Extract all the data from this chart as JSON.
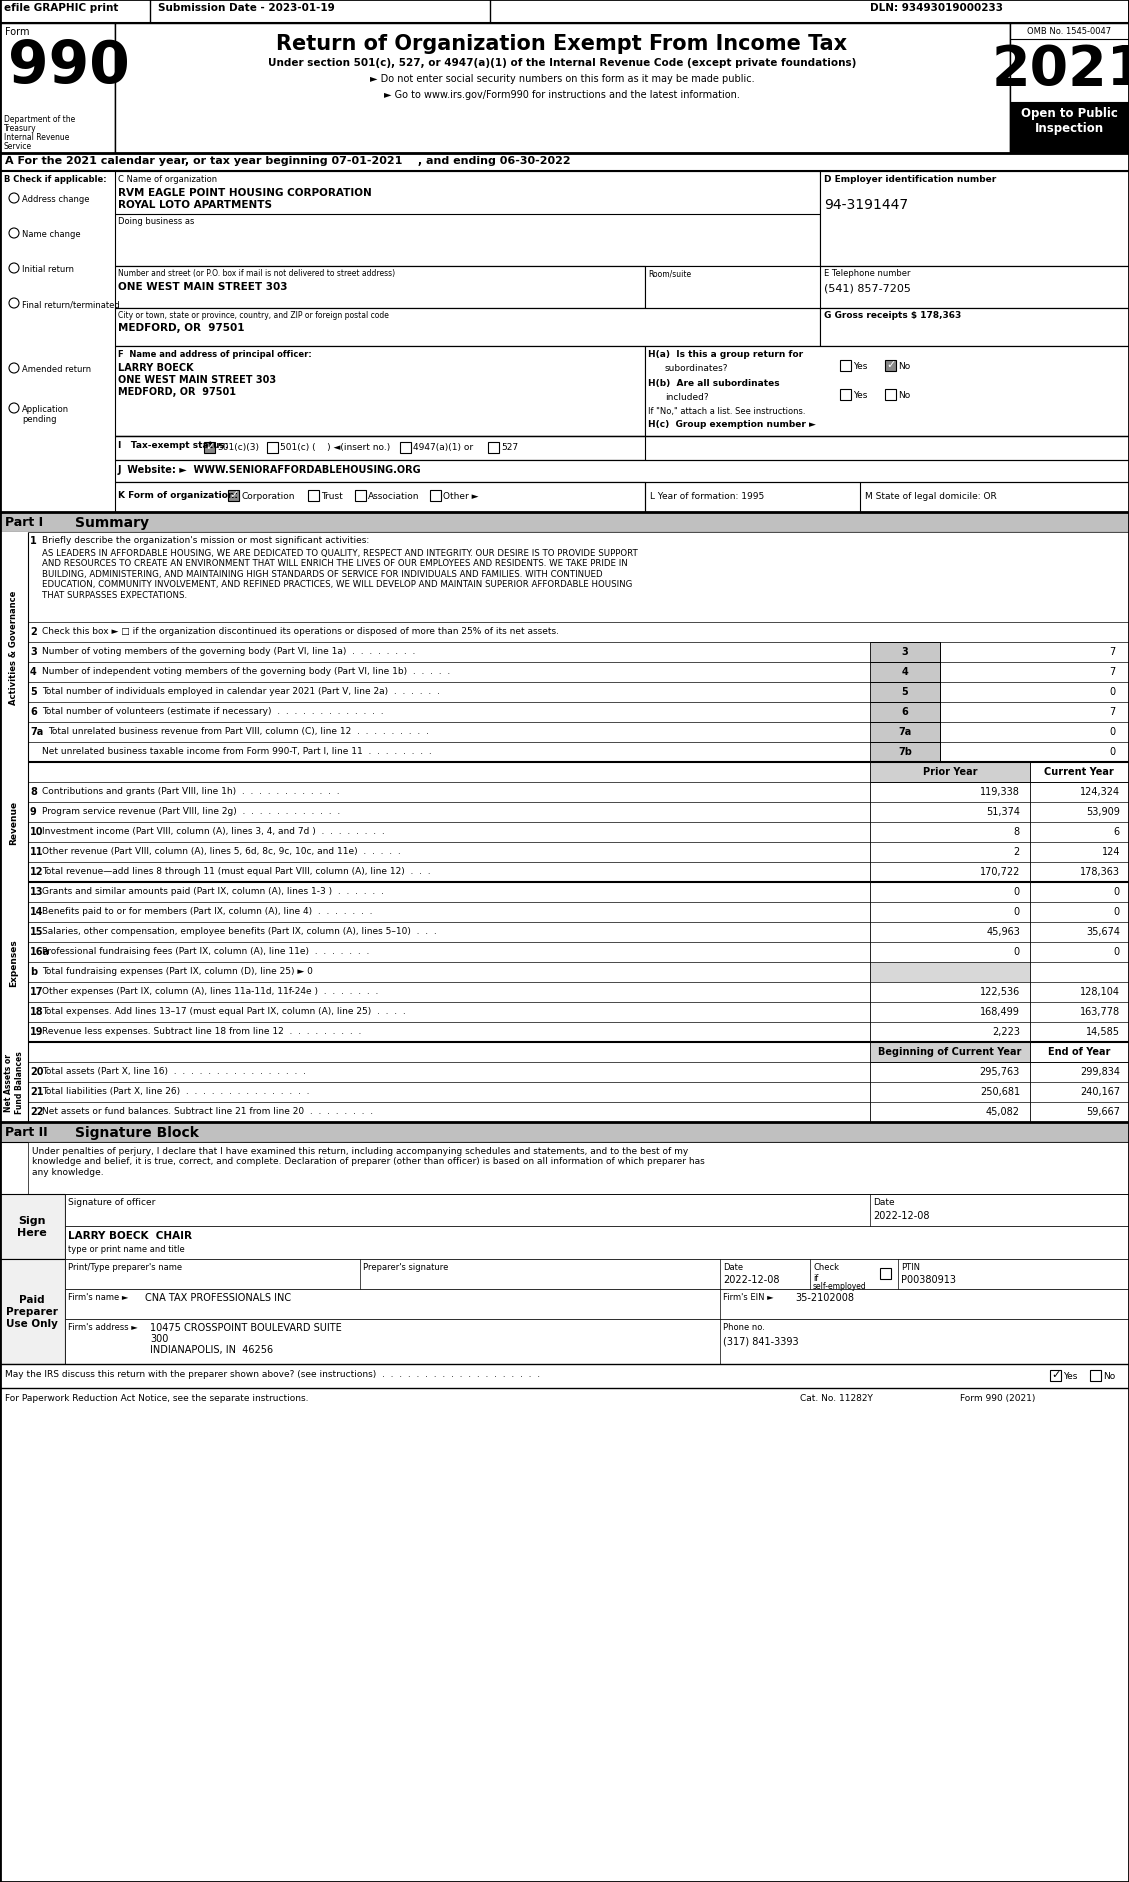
{
  "efile_text": "efile GRAPHIC print",
  "submission_date": "Submission Date - 2023-01-19",
  "dln": "DLN: 93493019000233",
  "form_number": "990",
  "title": "Return of Organization Exempt From Income Tax",
  "subtitle1": "Under section 501(c), 527, or 4947(a)(1) of the Internal Revenue Code (except private foundations)",
  "subtitle2": "► Do not enter social security numbers on this form as it may be made public.",
  "subtitle3": "► Go to www.irs.gov/Form990 for instructions and the latest information.",
  "year": "2021",
  "omb": "OMB No. 1545-0047",
  "open_to_public": "Open to Public\nInspection",
  "dept": "Department of the\nTreasury\nInternal Revenue\nService",
  "tax_year_line": "A For the 2021 calendar year, or tax year beginning 07-01-2021    , and ending 06-30-2022",
  "b_items": [
    "Address change",
    "Name change",
    "Initial return",
    "Final return/terminated",
    "Amended return",
    "Application\npending"
  ],
  "org_name1": "RVM EAGLE POINT HOUSING CORPORATION",
  "org_name2": "ROYAL LOTO APARTMENTS",
  "dba_label": "Doing business as",
  "street": "ONE WEST MAIN STREET 303",
  "city": "MEDFORD, OR  97501",
  "ein": "94-3191447",
  "phone": "(541) 857-7205",
  "gross_receipts": "178,363",
  "officer_name": "LARRY BOECK",
  "officer_street": "ONE WEST MAIN STREET 303",
  "officer_city": "MEDFORD, OR  97501",
  "website": "WWW.SENIORAFFORDABLEHOUSING.ORG",
  "mission": "AS LEADERS IN AFFORDABLE HOUSING, WE ARE DEDICATED TO QUALITY, RESPECT AND INTEGRITY. OUR DESIRE IS TO PROVIDE SUPPORT\nAND RESOURCES TO CREATE AN ENVIRONMENT THAT WILL ENRICH THE LIVES OF OUR EMPLOYEES AND RESIDENTS. WE TAKE PRIDE IN\nBUILDING, ADMINISTERING, AND MAINTAINING HIGH STANDARDS OF SERVICE FOR INDIVIDUALS AND FAMILIES. WITH CONTINUED\nEDUCATION, COMMUNITY INVOLVEMENT, AND REFINED PRACTICES, WE WILL DEVELOP AND MAINTAIN SUPERIOR AFFORDABLE HOUSING\nTHAT SURPASSES EXPECTATIONS.",
  "line2_text": "Check this box ► □ if the organization discontinued its operations or disposed of more than 25% of its net assets.",
  "line3_text": "Number of voting members of the governing body (Part VI, line 1a)  .  .  .  .  .  .  .  .",
  "line3_num": "7",
  "line4_text": "Number of independent voting members of the governing body (Part VI, line 1b)  .  .  .  .  .",
  "line4_num": "7",
  "line5_text": "Total number of individuals employed in calendar year 2021 (Part V, line 2a)  .  .  .  .  .  .",
  "line5_num": "0",
  "line6_text": "Total number of volunteers (estimate if necessary)  .  .  .  .  .  .  .  .  .  .  .  .  .",
  "line6_num": "7",
  "line7a_text": "Total unrelated business revenue from Part VIII, column (C), line 12  .  .  .  .  .  .  .  .  .",
  "line7a_num": "0",
  "line7b_text": "Net unrelated business taxable income from Form 990-T, Part I, line 11  .  .  .  .  .  .  .  .",
  "line7b_num": "0",
  "prior_year": "Prior Year",
  "current_year": "Current Year",
  "line8_text": "Contributions and grants (Part VIII, line 1h)  .  .  .  .  .  .  .  .  .  .  .  .",
  "line8_prior": "119,338",
  "line8_current": "124,324",
  "line9_text": "Program service revenue (Part VIII, line 2g)  .  .  .  .  .  .  .  .  .  .  .  .",
  "line9_prior": "51,374",
  "line9_current": "53,909",
  "line10_text": "Investment income (Part VIII, column (A), lines 3, 4, and 7d )  .  .  .  .  .  .  .  .",
  "line10_prior": "8",
  "line10_current": "6",
  "line11_text": "Other revenue (Part VIII, column (A), lines 5, 6d, 8c, 9c, 10c, and 11e)  .  .  .  .  .",
  "line11_prior": "2",
  "line11_current": "124",
  "line12_text": "Total revenue—add lines 8 through 11 (must equal Part VIII, column (A), line 12)  .  .  .",
  "line12_prior": "170,722",
  "line12_current": "178,363",
  "line13_text": "Grants and similar amounts paid (Part IX, column (A), lines 1-3 )  .  .  .  .  .  .",
  "line13_prior": "0",
  "line13_current": "0",
  "line14_text": "Benefits paid to or for members (Part IX, column (A), line 4)  .  .  .  .  .  .  .",
  "line14_prior": "0",
  "line14_current": "0",
  "line15_text": "Salaries, other compensation, employee benefits (Part IX, column (A), lines 5–10)  .  .  .",
  "line15_prior": "45,963",
  "line15_current": "35,674",
  "line16a_text": "Professional fundraising fees (Part IX, column (A), line 11e)  .  .  .  .  .  .  .",
  "line16a_prior": "0",
  "line16a_current": "0",
  "line16b_text": "Total fundraising expenses (Part IX, column (D), line 25) ► 0",
  "line17_text": "Other expenses (Part IX, column (A), lines 11a-11d, 11f-24e )  .  .  .  .  .  .  .",
  "line17_prior": "122,536",
  "line17_current": "128,104",
  "line18_text": "Total expenses. Add lines 13–17 (must equal Part IX, column (A), line 25)  .  .  .  .",
  "line18_prior": "168,499",
  "line18_current": "163,778",
  "line19_text": "Revenue less expenses. Subtract line 18 from line 12  .  .  .  .  .  .  .  .  .",
  "line19_prior": "2,223",
  "line19_current": "14,585",
  "boc_label": "Beginning of Current Year",
  "eoy_label": "End of Year",
  "line20_text": "Total assets (Part X, line 16)  .  .  .  .  .  .  .  .  .  .  .  .  .  .  .  .",
  "line20_boc": "295,763",
  "line20_eoy": "299,834",
  "line21_text": "Total liabilities (Part X, line 26)  .  .  .  .  .  .  .  .  .  .  .  .  .  .  .",
  "line21_boc": "250,681",
  "line21_eoy": "240,167",
  "line22_text": "Net assets or fund balances. Subtract line 21 from line 20  .  .  .  .  .  .  .  .",
  "line22_boc": "45,082",
  "line22_eoy": "59,667",
  "sig_perjury": "Under penalties of perjury, I declare that I have examined this return, including accompanying schedules and statements, and to the best of my\nknowledge and belief, it is true, correct, and complete. Declaration of preparer (other than officer) is based on all information of which preparer has\nany knowledge.",
  "sig_date": "2022-12-08",
  "officer_print": "LARRY BOECK  CHAIR",
  "preparer_date": "2022-12-08",
  "preparer_ptin": "P00380913",
  "firm_name": "CNA TAX PROFESSIONALS INC",
  "firm_ein": "35-2102008",
  "firm_address1": "10475 CROSSPOINT BOULEVARD SUITE",
  "firm_address2": "300",
  "firm_address3": "INDIANAPOLIS, IN  46256",
  "phone_num": "(317) 841-3393",
  "discuss_label": "May the IRS discuss this return with the preparer shown above? (see instructions)  .  .  .  .  .  .  .  .  .  .  .  .  .  .  .  .  .  .  .",
  "footer_paperwork": "For Paperwork Reduction Act Notice, see the separate instructions.",
  "footer_cat": "Cat. No. 11282Y",
  "footer_form": "Form 990 (2021)"
}
